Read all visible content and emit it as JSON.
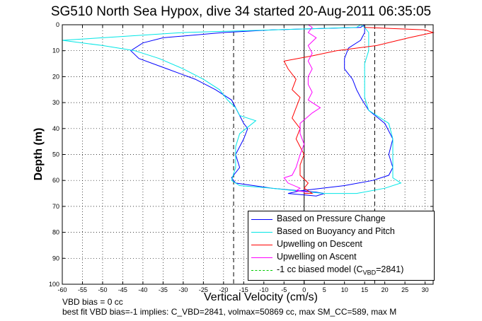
{
  "title": "SG510 North Sea Hypox, dive 34 started 20-Aug-2011 06:35:05",
  "notes": {
    "vbd_bias": "VBD bias = 0 cc",
    "best_fit": "best fit VBD bias=-1 implies: C_VBD=2841, volmax=50869 cc, max SM_CC=589, max M"
  },
  "chart_data": {
    "type": "line",
    "title": "SG510 North Sea Hypox, dive 34 started 20-Aug-2011 06:35:05",
    "xlabel": "Vertical Velocity (cm/s)",
    "ylabel": "Depth (m)",
    "xlim": [
      -60,
      32
    ],
    "ylim": [
      0,
      100
    ],
    "y_reversed": true,
    "grid": true,
    "x_ticks": [
      "-60",
      "-55",
      "-50",
      "-45",
      "-40",
      "-35",
      "-30",
      "-25",
      "-20",
      "-15",
      "-10",
      "-5",
      "0",
      "5",
      "10",
      "15",
      "20",
      "25",
      "30"
    ],
    "y_ticks": [
      "0",
      "10",
      "20",
      "30",
      "40",
      "50",
      "60",
      "70",
      "80",
      "90",
      "100"
    ],
    "vertical_reference_lines": [
      {
        "x": -17.5,
        "style": "dashed",
        "color": "#000000"
      },
      {
        "x": 0,
        "style": "solid",
        "color": "#000000"
      },
      {
        "x": 17.5,
        "style": "dashed",
        "color": "#000000"
      }
    ],
    "legend_position": "bottom-right",
    "series": [
      {
        "name": "Based on Pressure Change",
        "color": "#0000ff",
        "style": "solid",
        "points": [
          [
            15,
            0
          ],
          [
            14,
            1
          ],
          [
            -8,
            2
          ],
          [
            -20,
            3
          ],
          [
            -35,
            5
          ],
          [
            -40,
            7
          ],
          [
            -43,
            10
          ],
          [
            -41,
            13
          ],
          [
            -34,
            17
          ],
          [
            -27,
            21
          ],
          [
            -22,
            25
          ],
          [
            -18,
            29
          ],
          [
            -17,
            32
          ],
          [
            -16,
            35
          ],
          [
            -15,
            38
          ],
          [
            -14,
            40
          ],
          [
            -15,
            44
          ],
          [
            -17,
            50
          ],
          [
            -16,
            55
          ],
          [
            -18,
            59
          ],
          [
            -17,
            61
          ],
          [
            -8,
            63
          ],
          [
            -1,
            64
          ],
          [
            3,
            64.5
          ],
          [
            5,
            65
          ],
          [
            4,
            65.5
          ],
          [
            3,
            66
          ],
          [
            -4,
            65
          ],
          [
            -1,
            64
          ],
          [
            10,
            62
          ],
          [
            17,
            60
          ],
          [
            21,
            58
          ],
          [
            22,
            55
          ],
          [
            21,
            50
          ],
          [
            22,
            44
          ],
          [
            20,
            38
          ],
          [
            16,
            33
          ],
          [
            14,
            28
          ],
          [
            13,
            25
          ],
          [
            12,
            21
          ],
          [
            10,
            17
          ],
          [
            10,
            13
          ],
          [
            11,
            9
          ],
          [
            14,
            6
          ],
          [
            15,
            3
          ],
          [
            15,
            1
          ],
          [
            15,
            0
          ]
        ]
      },
      {
        "name": "Based on Buoyancy and Pitch",
        "color": "#00e6e6",
        "style": "solid",
        "points": [
          [
            14,
            0
          ],
          [
            13,
            1
          ],
          [
            -30,
            3
          ],
          [
            -50,
            5
          ],
          [
            -60,
            6
          ],
          [
            -50,
            8
          ],
          [
            -42,
            10
          ],
          [
            -36,
            13
          ],
          [
            -30,
            17
          ],
          [
            -25,
            21
          ],
          [
            -21,
            25
          ],
          [
            -19,
            29
          ],
          [
            -17,
            32
          ],
          [
            -16,
            35
          ],
          [
            -12,
            37
          ],
          [
            -16,
            42
          ],
          [
            -17,
            47
          ],
          [
            -17,
            55
          ],
          [
            -18,
            60
          ],
          [
            -16,
            62
          ],
          [
            -8,
            63
          ],
          [
            -2,
            64
          ],
          [
            5,
            65
          ],
          [
            13,
            65
          ],
          [
            20,
            63
          ],
          [
            24,
            61
          ],
          [
            22,
            59
          ],
          [
            22,
            55
          ],
          [
            22,
            50
          ],
          [
            22,
            44
          ],
          [
            21,
            38
          ],
          [
            16,
            33
          ],
          [
            15,
            28
          ],
          [
            15,
            21
          ],
          [
            15,
            15
          ],
          [
            16,
            10
          ],
          [
            16,
            6
          ],
          [
            16,
            3
          ],
          [
            15,
            1
          ],
          [
            14,
            0
          ]
        ]
      },
      {
        "name": "Upwelling on Descent",
        "color": "#ff0000",
        "style": "solid",
        "points": [
          [
            15,
            1
          ],
          [
            30,
            2
          ],
          [
            32,
            3
          ],
          [
            26,
            5
          ],
          [
            18,
            8
          ],
          [
            8,
            10
          ],
          [
            2,
            12
          ],
          [
            -5,
            14
          ],
          [
            -4,
            17
          ],
          [
            -2,
            21
          ],
          [
            -3,
            25
          ],
          [
            -1,
            28
          ],
          [
            -2,
            32
          ],
          [
            -3,
            36
          ],
          [
            -1,
            40
          ],
          [
            -2,
            44
          ],
          [
            -1,
            47
          ],
          [
            0,
            50
          ],
          [
            -1,
            54
          ],
          [
            -1,
            58
          ],
          [
            1,
            61
          ],
          [
            0,
            63
          ],
          [
            1,
            64
          ],
          [
            2,
            65
          ],
          [
            0,
            65
          ]
        ]
      },
      {
        "name": "Upwelling on Ascent",
        "color": "#ff00ff",
        "style": "solid",
        "points": [
          [
            1,
            0
          ],
          [
            2,
            1
          ],
          [
            1,
            3
          ],
          [
            3,
            5
          ],
          [
            1,
            8
          ],
          [
            2,
            11
          ],
          [
            1,
            14
          ],
          [
            2,
            17
          ],
          [
            1,
            20
          ],
          [
            1,
            23
          ],
          [
            2,
            26
          ],
          [
            1,
            29
          ],
          [
            4,
            32
          ],
          [
            2,
            34
          ],
          [
            -1,
            38
          ],
          [
            -1,
            42
          ],
          [
            0,
            46
          ],
          [
            -1,
            50
          ],
          [
            -2,
            55
          ],
          [
            -3,
            58
          ],
          [
            -5,
            59
          ],
          [
            -4,
            61
          ],
          [
            -1,
            63
          ],
          [
            -2,
            64
          ],
          [
            1,
            64.5
          ]
        ]
      },
      {
        "name": "-1 cc biased model (C_VBD=2841)",
        "color": "#00cc00",
        "style": "dashed",
        "points": []
      }
    ]
  }
}
